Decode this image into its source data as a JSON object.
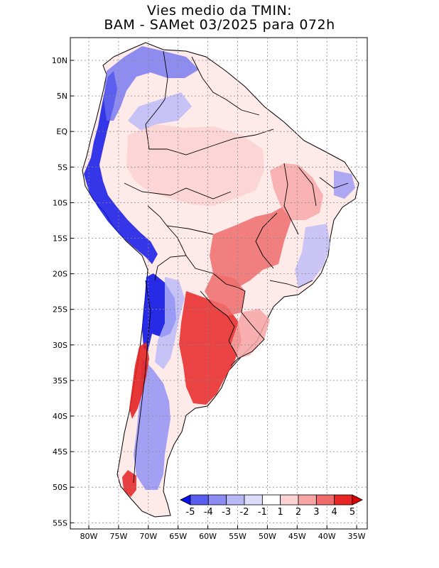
{
  "title": {
    "line1": "Vies medio da TMIN:",
    "line2": "BAM - SAMet 03/2025  para 072h"
  },
  "axes": {
    "lon_labels": [
      "80W",
      "75W",
      "70W",
      "65W",
      "60W",
      "55W",
      "50W",
      "45W",
      "40W",
      "35W"
    ],
    "lat_labels": [
      "10N",
      "5N",
      "EQ",
      "5S",
      "10S",
      "15S",
      "20S",
      "25S",
      "30S",
      "35S",
      "40S",
      "45S",
      "50S",
      "55S"
    ]
  },
  "colorbar": {
    "labels": [
      "-5",
      "-4",
      "-3",
      "-2",
      "-1",
      "1",
      "2",
      "3",
      "4",
      "5"
    ],
    "colors": [
      "#0a10e8",
      "#5a5cf0",
      "#8c8cf5",
      "#b8b8f7",
      "#dcdcfa",
      "#ffffff",
      "#fbd2d2",
      "#f7a4a4",
      "#f06c6c",
      "#e82626",
      "#e00000"
    ]
  }
}
